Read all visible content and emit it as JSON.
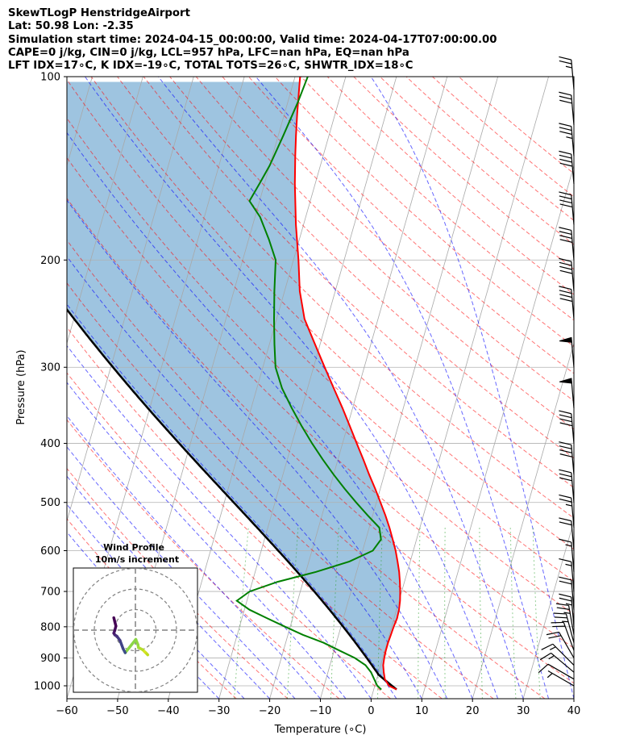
{
  "title_lines": [
    "SkewTLogP HenstridgeAirport",
    "Lat: 50.98   Lon: -2.35",
    "Simulation start time: 2024-04-15_00:00:00, Valid time: 2024-04-17T07:00:00.00",
    "CAPE=0 j/kg, CIN=0 j/kg, LCL=957 hPa, LFC=nan hPa, EQ=nan hPa",
    "LFT IDX=17∘C, K IDX=-19∘C, TOTAL TOTS=26∘C, SHWTR_IDX=18∘C"
  ],
  "chart_data": {
    "type": "skewt-logp",
    "xlabel": "Temperature (∘C)",
    "ylabel": "Pressure (hPa)",
    "xlim": [
      -60,
      40
    ],
    "ylim": [
      1050,
      100
    ],
    "y_scale": "log",
    "skew": 35,
    "x_ticks": [
      "−60",
      "−50",
      "−40",
      "−30",
      "−20",
      "−10",
      "0",
      "10",
      "20",
      "30",
      "40"
    ],
    "y_ticks": [
      "100",
      "200",
      "300",
      "400",
      "500",
      "600",
      "700",
      "800",
      "900",
      "1000"
    ],
    "grid": true,
    "temperature": {
      "color": "#ff0000",
      "points": [
        [
          1014,
          4.5
        ],
        [
          1000,
          2.8
        ],
        [
          975,
          1.6
        ],
        [
          950,
          1.0
        ],
        [
          925,
          0.5
        ],
        [
          900,
          0.3
        ],
        [
          875,
          0.2
        ],
        [
          850,
          0.2
        ],
        [
          825,
          0.3
        ],
        [
          800,
          0.4
        ],
        [
          775,
          0.6
        ],
        [
          750,
          0.5
        ],
        [
          725,
          0.2
        ],
        [
          700,
          -0.3
        ],
        [
          675,
          -0.9
        ],
        [
          650,
          -1.6
        ],
        [
          625,
          -2.5
        ],
        [
          600,
          -3.5
        ],
        [
          575,
          -4.7
        ],
        [
          550,
          -6.0
        ],
        [
          525,
          -7.5
        ],
        [
          500,
          -9.2
        ],
        [
          475,
          -11.0
        ],
        [
          450,
          -13.0
        ],
        [
          425,
          -15.0
        ],
        [
          400,
          -17.2
        ],
        [
          375,
          -19.5
        ],
        [
          350,
          -22.0
        ],
        [
          325,
          -24.8
        ],
        [
          300,
          -27.8
        ],
        [
          275,
          -31.0
        ],
        [
          250,
          -34.5
        ],
        [
          225,
          -37.0
        ],
        [
          200,
          -39.0
        ],
        [
          175,
          -41.5
        ],
        [
          150,
          -44.0
        ],
        [
          135,
          -45.5
        ],
        [
          125,
          -46.5
        ],
        [
          115,
          -47.5
        ],
        [
          100,
          -49.0
        ]
      ]
    },
    "dewpoint": {
      "color": "#008000",
      "points": [
        [
          1014,
          1.5
        ],
        [
          1000,
          0.5
        ],
        [
          975,
          -0.5
        ],
        [
          950,
          -1.5
        ],
        [
          925,
          -3.0
        ],
        [
          900,
          -5.5
        ],
        [
          875,
          -9.0
        ],
        [
          850,
          -12.5
        ],
        [
          825,
          -17.0
        ],
        [
          800,
          -21.0
        ],
        [
          775,
          -25.0
        ],
        [
          750,
          -29.0
        ],
        [
          725,
          -32.0
        ],
        [
          700,
          -30.0
        ],
        [
          675,
          -25.0
        ],
        [
          650,
          -18.0
        ],
        [
          625,
          -12.0
        ],
        [
          600,
          -8.0
        ],
        [
          575,
          -7.0
        ],
        [
          550,
          -8.0
        ],
        [
          525,
          -11.0
        ],
        [
          500,
          -14.0
        ],
        [
          475,
          -17.0
        ],
        [
          450,
          -20.0
        ],
        [
          425,
          -23.0
        ],
        [
          400,
          -26.0
        ],
        [
          375,
          -29.0
        ],
        [
          350,
          -32.0
        ],
        [
          325,
          -35.0
        ],
        [
          300,
          -37.5
        ],
        [
          275,
          -39.0
        ],
        [
          250,
          -40.5
        ],
        [
          225,
          -42.0
        ],
        [
          200,
          -43.5
        ],
        [
          185,
          -46.0
        ],
        [
          170,
          -49.0
        ],
        [
          160,
          -52.0
        ],
        [
          150,
          -51.0
        ],
        [
          140,
          -50.0
        ],
        [
          125,
          -49.0
        ],
        [
          110,
          -48.0
        ],
        [
          100,
          -47.5
        ]
      ]
    },
    "parcel_profile": {
      "color": "#000000",
      "description": "surface parcel path"
    },
    "cape_cin_shading": {
      "color": "#5d9ccb"
    },
    "reference_lines": [
      "dry adiabats",
      "moist adiabats",
      "mixing ratio lines",
      "isotherms"
    ],
    "wind_barbs": [
      {
        "p": 1000,
        "speed_kt": 8,
        "dir_deg": 300
      },
      {
        "p": 975,
        "speed_kt": 12,
        "dir_deg": 300
      },
      {
        "p": 950,
        "speed_kt": 15,
        "dir_deg": 310
      },
      {
        "p": 925,
        "speed_kt": 15,
        "dir_deg": 315
      },
      {
        "p": 900,
        "speed_kt": 20,
        "dir_deg": 330
      },
      {
        "p": 875,
        "speed_kt": 22,
        "dir_deg": 340
      },
      {
        "p": 850,
        "speed_kt": 25,
        "dir_deg": 345
      },
      {
        "p": 825,
        "speed_kt": 25,
        "dir_deg": 350
      },
      {
        "p": 800,
        "speed_kt": 25,
        "dir_deg": 355
      },
      {
        "p": 750,
        "speed_kt": 20,
        "dir_deg": 355
      },
      {
        "p": 700,
        "speed_kt": 15,
        "dir_deg": 355
      },
      {
        "p": 650,
        "speed_kt": 15,
        "dir_deg": 355
      },
      {
        "p": 600,
        "speed_kt": 20,
        "dir_deg": 355
      },
      {
        "p": 550,
        "speed_kt": 25,
        "dir_deg": 355
      },
      {
        "p": 500,
        "speed_kt": 30,
        "dir_deg": 355
      },
      {
        "p": 450,
        "speed_kt": 40,
        "dir_deg": 355
      },
      {
        "p": 400,
        "speed_kt": 40,
        "dir_deg": 355
      },
      {
        "p": 350,
        "speed_kt": 50,
        "dir_deg": 355
      },
      {
        "p": 300,
        "speed_kt": 50,
        "dir_deg": 355
      },
      {
        "p": 250,
        "speed_kt": 40,
        "dir_deg": 355
      },
      {
        "p": 225,
        "speed_kt": 40,
        "dir_deg": 355
      },
      {
        "p": 200,
        "speed_kt": 40,
        "dir_deg": 355
      },
      {
        "p": 175,
        "speed_kt": 40,
        "dir_deg": 355
      },
      {
        "p": 150,
        "speed_kt": 40,
        "dir_deg": 355
      },
      {
        "p": 135,
        "speed_kt": 35,
        "dir_deg": 355
      },
      {
        "p": 120,
        "speed_kt": 30,
        "dir_deg": 355
      },
      {
        "p": 105,
        "speed_kt": 25,
        "dir_deg": 355
      }
    ],
    "inset": {
      "title_lines": [
        "Wind Profile",
        "10m/s increment"
      ],
      "rings_ms": [
        10,
        20,
        30
      ],
      "hodograph": [
        {
          "u": 6,
          "v": -12,
          "color": "#bfdc1c"
        },
        {
          "u": 5,
          "v": -11,
          "color": "#c8e020"
        },
        {
          "u": 4.5,
          "v": -10.5,
          "color": "#d6e424"
        },
        {
          "u": 3.5,
          "v": -9.5,
          "color": "#b5de2b"
        },
        {
          "u": 1.5,
          "v": -8.5,
          "color": "#a0da39"
        },
        {
          "u": 1.2,
          "v": -7,
          "color": "#93d741"
        },
        {
          "u": 0.2,
          "v": -4.5,
          "color": "#8bd646"
        },
        {
          "u": -5,
          "v": -11,
          "color": "#3e4c8a"
        },
        {
          "u": -6,
          "v": -9,
          "color": "#404387"
        },
        {
          "u": -7.5,
          "v": -5,
          "color": "#443a83"
        },
        {
          "u": -9,
          "v": -3,
          "color": "#46327e"
        },
        {
          "u": -10,
          "v": -2.3,
          "color": "#472a79"
        },
        {
          "u": -10.5,
          "v": -1.5,
          "color": "#48186a"
        },
        {
          "u": -10,
          "v": 0,
          "color": "#450c5c"
        },
        {
          "u": -9.5,
          "v": 2,
          "color": "#440154"
        },
        {
          "u": -10,
          "v": 4,
          "color": "#440154"
        },
        {
          "u": -10.5,
          "v": 6,
          "color": "#440154"
        }
      ]
    }
  }
}
